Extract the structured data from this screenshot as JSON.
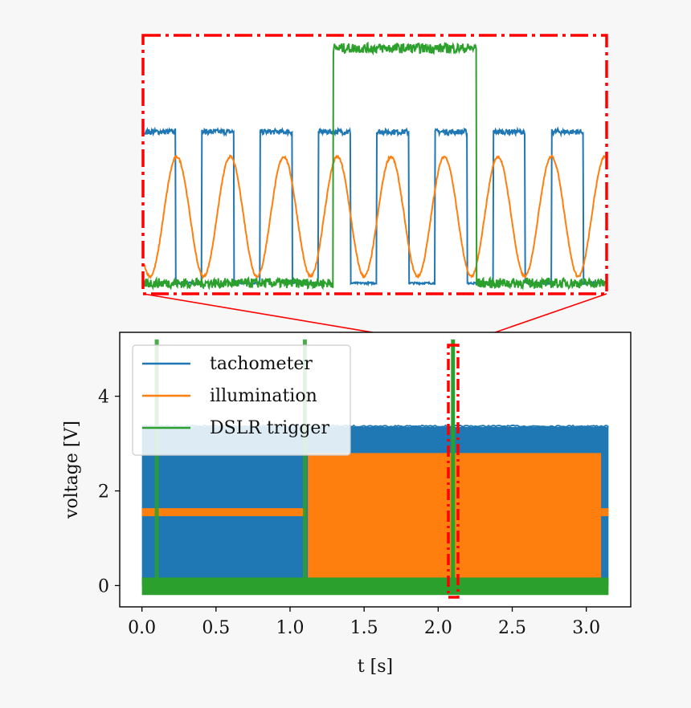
{
  "chart_data": {
    "type": "line",
    "title": "",
    "xlabel": "t [s]",
    "ylabel": "voltage [V]",
    "xlim": [
      -0.15,
      3.3
    ],
    "ylim": [
      -0.45,
      5.35
    ],
    "xticks": [
      0.0,
      0.5,
      1.0,
      1.5,
      2.0,
      2.5,
      3.0
    ],
    "xtick_labels": [
      "0.0",
      "0.5",
      "1.0",
      "1.5",
      "2.0",
      "2.5",
      "3.0"
    ],
    "yticks": [
      0,
      2,
      4
    ],
    "ytick_labels": [
      "0",
      "2",
      "4"
    ],
    "legend_position": "upper-left",
    "grid": false,
    "series": [
      {
        "name": "tachometer",
        "color": "#1f77b4",
        "description_values": {
          "t_start": 0.0,
          "t_end": 3.15,
          "low_level": 0.0,
          "high_level": 3.35,
          "waveform": "square"
        }
      },
      {
        "name": "illumination",
        "color": "#ff7f0e",
        "description_values": {
          "constant_level": 1.55,
          "constant_segments": [
            [
              0.0,
              1.1
            ],
            [
              3.1,
              3.15
            ]
          ],
          "oscillation_interval": [
            1.12,
            3.1
          ],
          "oscillation_min": 0.15,
          "oscillation_max": 2.8,
          "waveform": "sine"
        }
      },
      {
        "name": "DSLR trigger",
        "color": "#2ca02c",
        "description_values": {
          "baseline": 0.0,
          "pulse_level": 5.2,
          "pulse_times": [
            0.1,
            1.1,
            2.1
          ]
        }
      }
    ],
    "inset": {
      "zoom_x_range": [
        2.075,
        2.115
      ],
      "zoom_y_range": [
        -0.2,
        5.45
      ],
      "box_color": "#ff0000",
      "box_style": "dash-dot",
      "tachometer_cycles": 7.9,
      "illumination_cycles": 8.6,
      "trigger_high_fraction": [
        0.41,
        0.72
      ]
    }
  }
}
